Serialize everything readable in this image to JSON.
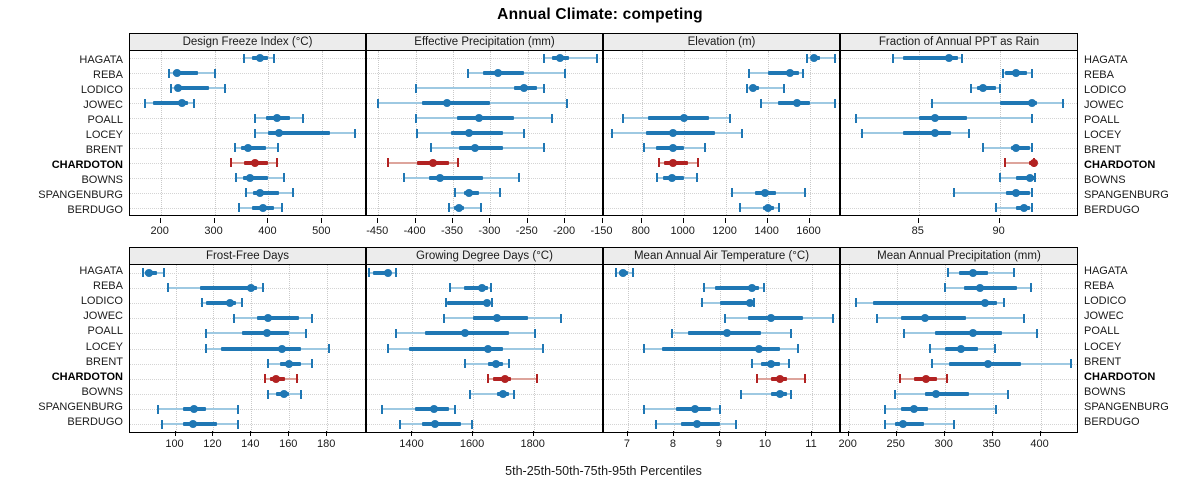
{
  "chart_data": {
    "type": "scatter",
    "subtype": "five-number-percentile-interval-dotplot",
    "title": "Annual Climate: competing",
    "xlabel": "5th-25th-50th-75th-95th Percentiles",
    "legend_position": "none",
    "grid": "dotted",
    "percentiles": [
      "5th",
      "25th",
      "50th",
      "75th",
      "95th"
    ],
    "categories": [
      "HAGATA",
      "REBA",
      "LODICO",
      "JOWEC",
      "POALL",
      "LOCEY",
      "BRENT",
      "CHARDOTON",
      "BOWNS",
      "SPANGENBURG",
      "BERDUGO"
    ],
    "highlight_category": "CHARDOTON",
    "colors": {
      "main": "#1f77b4",
      "main_light": "#9ec9e2",
      "highlight": "#b22222",
      "highlight_light": "#dda49c",
      "header_bg": "#ececec",
      "grid": "#cccccc"
    },
    "panels": [
      {
        "title": "Design Freeze Index (°C)",
        "xlim": [
          143,
          583
        ],
        "ticks": [
          200,
          300,
          400,
          500
        ],
        "values": {
          "HAGATA": [
            355,
            370,
            385,
            400,
            410
          ],
          "REBA": [
            215,
            222,
            230,
            270,
            300
          ],
          "LODICO": [
            220,
            227,
            233,
            290,
            320
          ],
          "JOWEC": [
            170,
            185,
            240,
            250,
            262
          ],
          "POALL": [
            375,
            395,
            415,
            440,
            465
          ],
          "LOCEY": [
            375,
            400,
            420,
            515,
            560
          ],
          "BRENT": [
            338,
            350,
            362,
            395,
            418
          ],
          "CHARDOTON": [
            330,
            355,
            375,
            400,
            415
          ],
          "BOWNS": [
            340,
            352,
            365,
            400,
            428
          ],
          "SPANGENBURG": [
            358,
            372,
            385,
            420,
            445
          ],
          "BERDUGO": [
            345,
            370,
            390,
            410,
            425
          ]
        }
      },
      {
        "title": "Effective Precipitation (mm)",
        "xlim": [
          -465,
          -148
        ],
        "ticks": [
          -450,
          -400,
          -350,
          -300,
          -250,
          -200,
          -150
        ],
        "values": {
          "HAGATA": [
            -228,
            -218,
            -207,
            -195,
            -157
          ],
          "REBA": [
            -330,
            -310,
            -290,
            -255,
            -200
          ],
          "LODICO": [
            -400,
            -268,
            -255,
            -237,
            -228
          ],
          "JOWEC": [
            -450,
            -392,
            -358,
            -300,
            -198
          ],
          "POALL": [
            -400,
            -345,
            -315,
            -268,
            -218
          ],
          "LOCEY": [
            -398,
            -352,
            -328,
            -283,
            -255
          ],
          "BRENT": [
            -380,
            -342,
            -320,
            -283,
            -228
          ],
          "CHARDOTON": [
            -437,
            -398,
            -377,
            -355,
            -343
          ],
          "BOWNS": [
            -415,
            -382,
            -368,
            -310,
            -262
          ],
          "SPANGENBURG": [
            -347,
            -335,
            -328,
            -315,
            -287
          ],
          "BERDUGO": [
            -355,
            -348,
            -342,
            -335,
            -312
          ]
        }
      },
      {
        "title": "Elevation (m)",
        "xlim": [
          620,
          1750
        ],
        "ticks": [
          800,
          1000,
          1200,
          1400,
          1600
        ],
        "values": {
          "HAGATA": [
            1590,
            1605,
            1620,
            1650,
            1720
          ],
          "REBA": [
            1310,
            1400,
            1505,
            1550,
            1570
          ],
          "LODICO": [
            1300,
            1315,
            1330,
            1360,
            1480
          ],
          "JOWEC": [
            1370,
            1450,
            1540,
            1600,
            1720
          ],
          "POALL": [
            710,
            830,
            1000,
            1120,
            1220
          ],
          "LOCEY": [
            660,
            820,
            950,
            1150,
            1280
          ],
          "BRENT": [
            810,
            870,
            950,
            1000,
            1100
          ],
          "CHARDOTON": [
            880,
            905,
            950,
            1020,
            1070
          ],
          "BOWNS": [
            875,
            900,
            945,
            1000,
            1065
          ],
          "SPANGENBURG": [
            1230,
            1340,
            1390,
            1440,
            1580
          ],
          "BERDUGO": [
            1270,
            1380,
            1400,
            1430,
            1455
          ]
        }
      },
      {
        "title": "Fraction of Annual PPT as Rain",
        "xlim": [
          80.2,
          94.9
        ],
        "ticks": [
          85,
          90
        ],
        "values": {
          "HAGATA": [
            83.4,
            84.0,
            86.9,
            87.4,
            87.7
          ],
          "REBA": [
            90.2,
            90.3,
            91.0,
            91.7,
            92.0
          ],
          "LODICO": [
            88.2,
            88.6,
            89.0,
            89.8,
            90.0
          ],
          "JOWEC": [
            85.8,
            90.0,
            92.0,
            92.3,
            93.9
          ],
          "POALL": [
            81.1,
            85.0,
            86.0,
            88.0,
            92.0
          ],
          "LOCEY": [
            81.5,
            84.0,
            86.0,
            87.0,
            88.1
          ],
          "BRENT": [
            89.0,
            90.7,
            91.0,
            91.9,
            92.0
          ],
          "CHARDOTON": [
            90.3,
            91.8,
            92.1,
            92.1,
            92.1
          ],
          "BOWNS": [
            90.0,
            91.0,
            91.9,
            92.2,
            92.2
          ],
          "SPANGENBURG": [
            87.2,
            90.4,
            91.0,
            91.9,
            92.0
          ],
          "BERDUGO": [
            89.8,
            91.0,
            91.5,
            91.9,
            92.0
          ]
        }
      },
      {
        "title": "Frost-Free Days",
        "xlim": [
          76,
          201
        ],
        "ticks": [
          100,
          120,
          140,
          160,
          180
        ],
        "values": {
          "HAGATA": [
            83,
            84,
            86,
            90,
            94
          ],
          "REBA": [
            96,
            113,
            140,
            143,
            146
          ],
          "LODICO": [
            114,
            116,
            129,
            132,
            135
          ],
          "JOWEC": [
            131,
            143,
            149,
            165,
            172
          ],
          "POALL": [
            116,
            135,
            148,
            160,
            169
          ],
          "LOCEY": [
            116,
            124,
            156,
            166,
            181
          ],
          "BRENT": [
            149,
            155,
            160,
            166,
            172
          ],
          "CHARDOTON": [
            147,
            150,
            153,
            158,
            164
          ],
          "BOWNS": [
            149,
            153,
            157,
            160,
            166
          ],
          "SPANGENBURG": [
            91,
            104,
            110,
            116,
            133
          ],
          "BERDUGO": [
            93,
            104,
            109,
            122,
            133
          ]
        }
      },
      {
        "title": "Growing Degree Days (°C)",
        "xlim": [
          1250,
          2032
        ],
        "ticks": [
          1400,
          1600,
          1800
        ],
        "values": {
          "HAGATA": [
            1255,
            1270,
            1320,
            1330,
            1345
          ],
          "REBA": [
            1525,
            1570,
            1630,
            1650,
            1660
          ],
          "LODICO": [
            1510,
            1515,
            1645,
            1650,
            1662
          ],
          "JOWEC": [
            1505,
            1600,
            1680,
            1780,
            1890
          ],
          "POALL": [
            1345,
            1440,
            1575,
            1720,
            1805
          ],
          "LOCEY": [
            1320,
            1390,
            1650,
            1700,
            1830
          ],
          "BRENT": [
            1575,
            1650,
            1675,
            1700,
            1720
          ],
          "CHARDOTON": [
            1650,
            1665,
            1705,
            1725,
            1810
          ],
          "BOWNS": [
            1590,
            1680,
            1700,
            1720,
            1735
          ],
          "SPANGENBURG": [
            1300,
            1410,
            1470,
            1520,
            1540
          ],
          "BERDUGO": [
            1360,
            1430,
            1475,
            1560,
            1595
          ]
        }
      },
      {
        "title": "Mean Annual Air Temperature (°C)",
        "xlim": [
          6.48,
          11.63
        ],
        "ticks": [
          7,
          8,
          9,
          10,
          11
        ],
        "values": {
          "HAGATA": [
            6.75,
            6.8,
            6.9,
            7.0,
            7.1
          ],
          "REBA": [
            8.65,
            8.9,
            9.7,
            9.85,
            9.95
          ],
          "LODICO": [
            8.6,
            9.0,
            9.65,
            9.7,
            9.75
          ],
          "JOWEC": [
            9.1,
            9.6,
            10.1,
            10.8,
            11.45
          ],
          "POALL": [
            7.95,
            8.3,
            9.15,
            9.9,
            10.55
          ],
          "LOCEY": [
            7.35,
            7.75,
            9.85,
            10.3,
            10.7
          ],
          "BRENT": [
            9.7,
            9.9,
            10.1,
            10.3,
            10.5
          ],
          "CHARDOTON": [
            9.8,
            10.1,
            10.3,
            10.45,
            10.85
          ],
          "BOWNS": [
            9.45,
            10.1,
            10.3,
            10.45,
            10.55
          ],
          "SPANGENBURG": [
            7.35,
            8.05,
            8.45,
            8.8,
            9.0
          ],
          "BERDUGO": [
            7.6,
            8.15,
            8.5,
            9.0,
            9.35
          ]
        }
      },
      {
        "title": "Mean Annual Precipitation (mm)",
        "xlim": [
          192,
          440
        ],
        "ticks": [
          200,
          250,
          300,
          350,
          400
        ],
        "values": {
          "HAGATA": [
            303,
            315,
            330,
            345,
            372
          ],
          "REBA": [
            300,
            320,
            337,
            375,
            390
          ],
          "LODICO": [
            208,
            225,
            342,
            355,
            362
          ],
          "JOWEC": [
            230,
            255,
            280,
            322,
            383
          ],
          "POALL": [
            258,
            290,
            330,
            360,
            396
          ],
          "LOCEY": [
            285,
            300,
            317,
            335,
            352
          ],
          "BRENT": [
            287,
            305,
            345,
            380,
            432
          ],
          "CHARDOTON": [
            253,
            268,
            281,
            292,
            302
          ],
          "BOWNS": [
            248,
            280,
            291,
            325,
            366
          ],
          "SPANGENBURG": [
            238,
            255,
            268,
            283,
            354
          ],
          "BERDUGO": [
            238,
            248,
            257,
            278,
            310
          ]
        }
      }
    ]
  }
}
